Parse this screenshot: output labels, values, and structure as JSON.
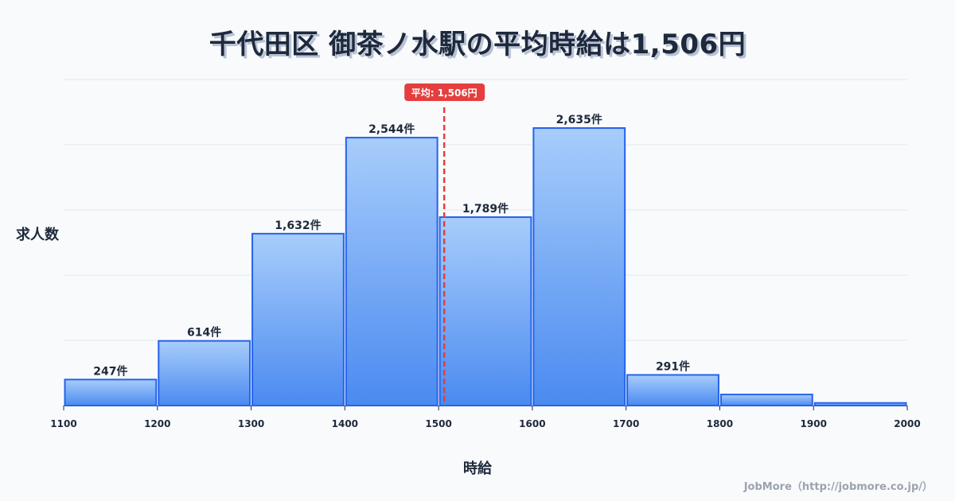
{
  "title": "千代田区 御茶ノ水駅の平均時給は1,506円",
  "axis": {
    "ylabel": "求人数",
    "xlabel": "時給"
  },
  "credit": "JobMore（http://jobmore.co.jp/）",
  "average": {
    "label": "平均: 1,506円",
    "value": 1506,
    "color": "#e53e3e"
  },
  "colors": {
    "bar_top": "#a8cdfb",
    "bar_bottom": "#4a8af0",
    "bar_border": "#2563eb",
    "grid": "#e2e8f0",
    "text": "#1e293b"
  },
  "chart_data": {
    "type": "bar",
    "title": "千代田区 御茶ノ水駅の平均時給は1,506円",
    "xlabel": "時給",
    "ylabel": "求人数",
    "bins": [
      [
        1100,
        1200
      ],
      [
        1200,
        1300
      ],
      [
        1300,
        1400
      ],
      [
        1400,
        1500
      ],
      [
        1500,
        1600
      ],
      [
        1600,
        1700
      ],
      [
        1700,
        1800
      ],
      [
        1800,
        1900
      ],
      [
        1900,
        2000
      ]
    ],
    "categories": [
      "1100-1200",
      "1200-1300",
      "1300-1400",
      "1400-1500",
      "1500-1600",
      "1600-1700",
      "1700-1800",
      "1800-1900",
      "1900-2000"
    ],
    "values": [
      247,
      614,
      1632,
      2544,
      1789,
      2635,
      291,
      105,
      25
    ],
    "value_labels": [
      "247件",
      "614件",
      "1,632件",
      "2,544件",
      "1,789件",
      "2,635件",
      "291件",
      "",
      ""
    ],
    "x_ticks": [
      "1100",
      "1200",
      "1300",
      "1400",
      "1500",
      "1600",
      "1700",
      "1800",
      "1900",
      "2000"
    ],
    "xlim": [
      1100,
      2000
    ],
    "ylim": [
      0,
      3080
    ],
    "grid": true,
    "annotations": [
      {
        "type": "vline",
        "x": 1506,
        "label": "平均: 1,506円",
        "style": "dashed",
        "color": "#e53e3e"
      }
    ]
  }
}
